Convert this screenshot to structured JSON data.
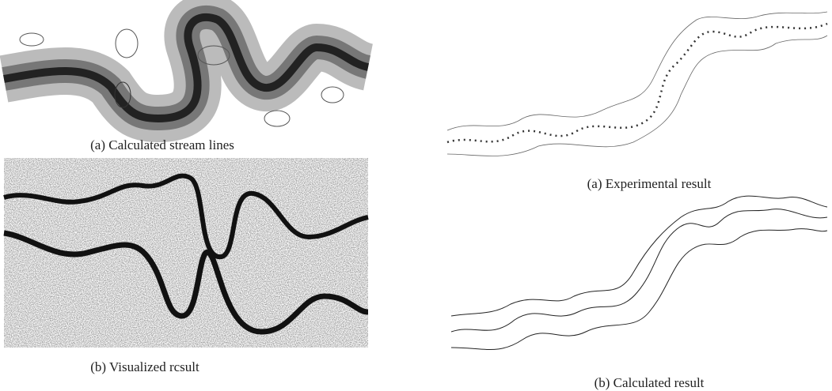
{
  "panels": [
    {
      "caption": "(a)  Calculated stream lines"
    },
    {
      "caption": "(b)  Visualized rcsult"
    },
    {
      "caption": "(a)  Experimental result"
    },
    {
      "caption": "(b)  Calculated result"
    }
  ]
}
